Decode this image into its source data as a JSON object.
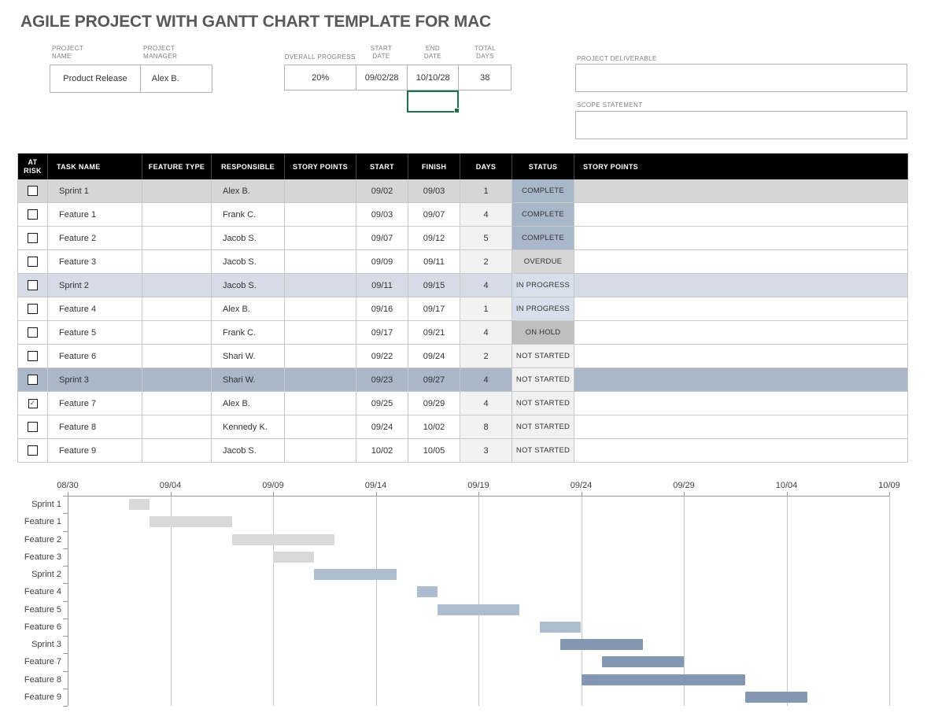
{
  "title": "AGILE PROJECT WITH GANTT CHART TEMPLATE FOR MAC",
  "form": {
    "project_name": {
      "label_line1": "PROJECT",
      "label_line2": "NAME",
      "value": "Product Release"
    },
    "project_manager": {
      "label_line1": "PROJECT",
      "label_line2": "MANAGER",
      "value": "Alex B."
    },
    "overall_progress": {
      "label": "OVERALL PROGRESS",
      "value": "20%"
    },
    "start_date": {
      "label_line1": "START",
      "label_line2": "DATE",
      "value": "09/02/28"
    },
    "end_date": {
      "label_line1": "END",
      "label_line2": "DATE",
      "value": "10/10/28"
    },
    "total_days": {
      "label_line1": "TOTAL",
      "label_line2": "DAYS",
      "value": "38"
    },
    "project_deliverable": {
      "label": "PROJECT DELIVERABLE",
      "value": ""
    },
    "scope_statement": {
      "label": "SCOPE STATEMENT",
      "value": ""
    }
  },
  "table": {
    "columns": [
      "AT RISK",
      "TASK NAME",
      "FEATURE TYPE",
      "RESPONSIBLE",
      "STORY POINTS",
      "START",
      "FINISH",
      "DAYS",
      "STATUS",
      "STORY POINTS"
    ],
    "rows": [
      {
        "at_risk": false,
        "task_name": "Sprint 1",
        "feature_type": "",
        "responsible": "Alex B.",
        "story_points": "",
        "start": "09/02",
        "finish": "09/03",
        "days": "1",
        "status": "COMPLETE",
        "story_points_2": "",
        "row_style": "sprint1"
      },
      {
        "at_risk": false,
        "task_name": "Feature 1",
        "feature_type": "",
        "responsible": "Frank C.",
        "story_points": "",
        "start": "09/03",
        "finish": "09/07",
        "days": "4",
        "status": "COMPLETE",
        "story_points_2": "",
        "row_style": "feature"
      },
      {
        "at_risk": false,
        "task_name": "Feature 2",
        "feature_type": "",
        "responsible": "Jacob S.",
        "story_points": "",
        "start": "09/07",
        "finish": "09/12",
        "days": "5",
        "status": "COMPLETE",
        "story_points_2": "",
        "row_style": "feature"
      },
      {
        "at_risk": false,
        "task_name": "Feature 3",
        "feature_type": "",
        "responsible": "Jacob S.",
        "story_points": "",
        "start": "09/09",
        "finish": "09/11",
        "days": "2",
        "status": "OVERDUE",
        "story_points_2": "",
        "row_style": "feature"
      },
      {
        "at_risk": false,
        "task_name": "Sprint 2",
        "feature_type": "",
        "responsible": "Jacob S.",
        "story_points": "",
        "start": "09/11",
        "finish": "09/15",
        "days": "4",
        "status": "IN PROGRESS",
        "story_points_2": "",
        "row_style": "sprint2"
      },
      {
        "at_risk": false,
        "task_name": "Feature 4",
        "feature_type": "",
        "responsible": "Alex B.",
        "story_points": "",
        "start": "09/16",
        "finish": "09/17",
        "days": "1",
        "status": "IN PROGRESS",
        "story_points_2": "",
        "row_style": "feature"
      },
      {
        "at_risk": false,
        "task_name": "Feature 5",
        "feature_type": "",
        "responsible": "Frank C.",
        "story_points": "",
        "start": "09/17",
        "finish": "09/21",
        "days": "4",
        "status": "ON HOLD",
        "story_points_2": "",
        "row_style": "feature"
      },
      {
        "at_risk": false,
        "task_name": "Feature 6",
        "feature_type": "",
        "responsible": "Shari W.",
        "story_points": "",
        "start": "09/22",
        "finish": "09/24",
        "days": "2",
        "status": "NOT STARTED",
        "story_points_2": "",
        "row_style": "feature"
      },
      {
        "at_risk": false,
        "task_name": "Sprint 3",
        "feature_type": "",
        "responsible": "Shari W.",
        "story_points": "",
        "start": "09/23",
        "finish": "09/27",
        "days": "4",
        "status": "NOT STARTED",
        "story_points_2": "",
        "row_style": "sprint3"
      },
      {
        "at_risk": true,
        "task_name": "Feature 7",
        "feature_type": "",
        "responsible": "Alex B.",
        "story_points": "",
        "start": "09/25",
        "finish": "09/29",
        "days": "4",
        "status": "NOT STARTED",
        "story_points_2": "",
        "row_style": "feature"
      },
      {
        "at_risk": false,
        "task_name": "Feature 8",
        "feature_type": "",
        "responsible": "Kennedy K.",
        "story_points": "",
        "start": "09/24",
        "finish": "10/02",
        "days": "8",
        "status": "NOT STARTED",
        "story_points_2": "",
        "row_style": "feature"
      },
      {
        "at_risk": false,
        "task_name": "Feature 9",
        "feature_type": "",
        "responsible": "Jacob S.",
        "story_points": "",
        "start": "10/02",
        "finish": "10/05",
        "days": "3",
        "status": "NOT STARTED",
        "story_points_2": "",
        "row_style": "feature"
      }
    ]
  },
  "colors": {
    "title_text": "#595959",
    "header_bg": "#000000",
    "header_text": "#ffffff",
    "row_bg": {
      "sprint1": "#d6d6d6",
      "sprint2": "#d5dce6",
      "sprint3": "#a9b7c9",
      "feature": "#ffffff"
    },
    "days_cell_feature": "#f2f2f2",
    "status_bg": {
      "COMPLETE": "#a9b7cb",
      "OVERDUE": "#d6d6d6",
      "IN PROGRESS": "#d7e0ea",
      "ON HOLD": "#bfbfbf",
      "NOT STARTED": "#f1f1f1"
    },
    "selection_green": "#1e7145"
  },
  "chart_data": {
    "type": "bar",
    "subtype": "gantt",
    "x_ticks": [
      "08/30",
      "09/04",
      "09/09",
      "09/14",
      "09/19",
      "09/24",
      "09/29",
      "10/04",
      "10/09"
    ],
    "days_per_tick": 5,
    "total_days": 40,
    "grid": true,
    "categories": [
      "Sprint 1",
      "Feature 1",
      "Feature 2",
      "Feature 3",
      "Sprint 2",
      "Feature 4",
      "Feature 5",
      "Feature 6",
      "Sprint 3",
      "Feature 7",
      "Feature 8",
      "Feature 9"
    ],
    "bars": [
      {
        "name": "Sprint 1",
        "start": "09/02",
        "finish": "09/03",
        "start_day": 3,
        "end_day": 4,
        "color": "#d9d9d9"
      },
      {
        "name": "Feature 1",
        "start": "09/03",
        "finish": "09/07",
        "start_day": 4,
        "end_day": 8,
        "color": "#d9d9d9"
      },
      {
        "name": "Feature 2",
        "start": "09/07",
        "finish": "09/12",
        "start_day": 8,
        "end_day": 13,
        "color": "#d9d9d9"
      },
      {
        "name": "Feature 3",
        "start": "09/09",
        "finish": "09/11",
        "start_day": 10,
        "end_day": 12,
        "color": "#d9d9d9"
      },
      {
        "name": "Sprint 2",
        "start": "09/11",
        "finish": "09/15",
        "start_day": 12,
        "end_day": 16,
        "color": "#aebcd0"
      },
      {
        "name": "Feature 4",
        "start": "09/16",
        "finish": "09/17",
        "start_day": 17,
        "end_day": 18,
        "color": "#aebcd0"
      },
      {
        "name": "Feature 5",
        "start": "09/17",
        "finish": "09/21",
        "start_day": 18,
        "end_day": 22,
        "color": "#aebcd0"
      },
      {
        "name": "Feature 6",
        "start": "09/22",
        "finish": "09/24",
        "start_day": 23,
        "end_day": 25,
        "color": "#aebcd0"
      },
      {
        "name": "Sprint 3",
        "start": "09/23",
        "finish": "09/27",
        "start_day": 24,
        "end_day": 28,
        "color": "#8497b2"
      },
      {
        "name": "Feature 7",
        "start": "09/25",
        "finish": "09/29",
        "start_day": 26,
        "end_day": 30,
        "color": "#8497b2"
      },
      {
        "name": "Feature 8",
        "start": "09/24",
        "finish": "10/02",
        "start_day": 25,
        "end_day": 33,
        "color": "#8497b2"
      },
      {
        "name": "Feature 9",
        "start": "10/02",
        "finish": "10/05",
        "start_day": 33,
        "end_day": 36,
        "color": "#8497b2"
      }
    ]
  }
}
